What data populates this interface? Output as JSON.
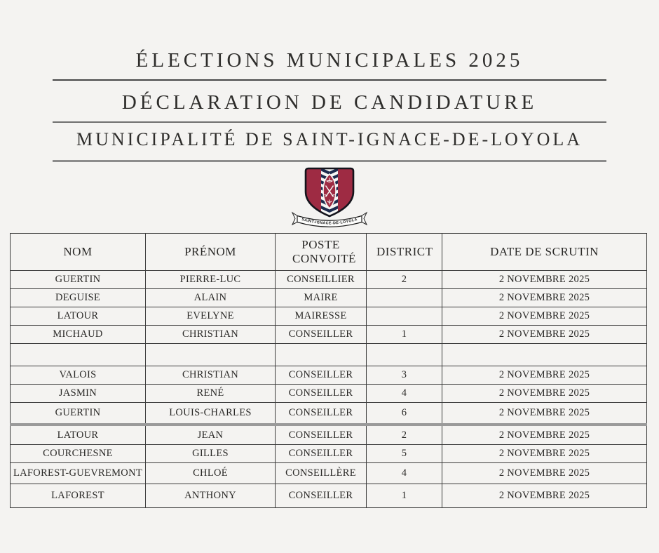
{
  "page": {
    "background_color": "#f4f3f1",
    "text_color": "#2e2d2b",
    "accent_red": "#9e2b43",
    "accent_navy": "#1d2b4e"
  },
  "header": {
    "title1": "ÉLECTIONS MUNICIPALES 2025",
    "title2": "DÉCLARATION DE CANDIDATURE",
    "title3": "MUNICIPALITÉ DE SAINT-IGNACE-DE-LOYOLA"
  },
  "crest": {
    "icon": "coat-of-arms",
    "ribbon_text": "SAINT-IGNACE-DE-LOYOLA"
  },
  "table": {
    "columns": [
      "NOM",
      "PRÉNOM",
      "POSTE CONVOITÉ",
      "DISTRICT",
      "DATE DE SCRUTIN"
    ],
    "rows": [
      [
        "GUERTIN",
        "PIERRE-LUC",
        "CONSEILLIER",
        "2",
        "2 NOVEMBRE 2025"
      ],
      [
        "DEGUISE",
        "ALAIN",
        "MAIRE",
        "",
        "2 NOVEMBRE 2025"
      ],
      [
        "LATOUR",
        "EVELYNE",
        "MAIRESSE",
        "",
        "2 NOVEMBRE 2025"
      ],
      [
        "MICHAUD",
        "CHRISTIAN",
        "CONSEILLER",
        "1",
        "2 NOVEMBRE 2025"
      ],
      [
        "",
        "",
        "",
        "",
        ""
      ],
      [
        "VALOIS",
        "CHRISTIAN",
        "CONSEILLER",
        "3",
        "2 NOVEMBRE 2025"
      ],
      [
        "JASMIN",
        "RENÉ",
        "CONSEILLER",
        "4",
        "2 NOVEMBRE 2025"
      ],
      [
        "GUERTIN",
        "LOUIS-CHARLES",
        "CONSEILLER",
        "6",
        "2 NOVEMBRE 2025"
      ],
      [
        "LATOUR",
        "JEAN",
        "CONSEILLER",
        "2",
        "2 NOVEMBRE 2025"
      ],
      [
        "COURCHESNE",
        "GILLES",
        "CONSEILLER",
        "5",
        "2 NOVEMBRE 2025"
      ],
      [
        "LAFOREST-GUEVREMONT",
        "CHLOÉ",
        "CONSEILLÈRE",
        "4",
        "2 NOVEMBRE 2025"
      ],
      [
        "LAFOREST",
        "ANTHONY",
        "CONSEILLER",
        "1",
        "2 NOVEMBRE 2025"
      ]
    ]
  }
}
